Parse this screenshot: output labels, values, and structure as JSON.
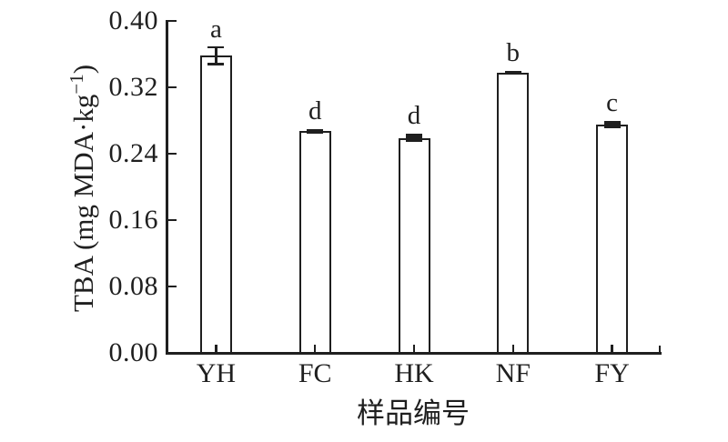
{
  "figure": {
    "background": "#ffffff",
    "ink_color": "#1f1f1f"
  },
  "chart_data": {
    "type": "bar",
    "title": "",
    "categories": [
      "YH",
      "FC",
      "HK",
      "NF",
      "FY"
    ],
    "values": [
      0.358,
      0.267,
      0.259,
      0.338,
      0.275
    ],
    "errors": [
      0.01,
      0.003,
      0.005,
      0.002,
      0.004
    ],
    "sig_letters": [
      "a",
      "d",
      "d",
      "b",
      "c"
    ],
    "xlabel": "样品编号",
    "ylabel": "TBA (mg MDA·kg⁻¹)",
    "ylabel_parts": {
      "prefix": "TBA (mg MDA·kg",
      "sup": "−1",
      "suffix": ")"
    },
    "ylim": [
      0,
      0.4
    ],
    "yticks": [
      0.0,
      0.08,
      0.16,
      0.24,
      0.32,
      0.4
    ],
    "ytick_labels": [
      "0.00",
      "0.08",
      "0.16",
      "0.24",
      "0.32",
      "0.40"
    ],
    "grid": false,
    "legend": "none",
    "bar_fill": "#ffffff",
    "bar_edge": "#1f1f1f"
  }
}
